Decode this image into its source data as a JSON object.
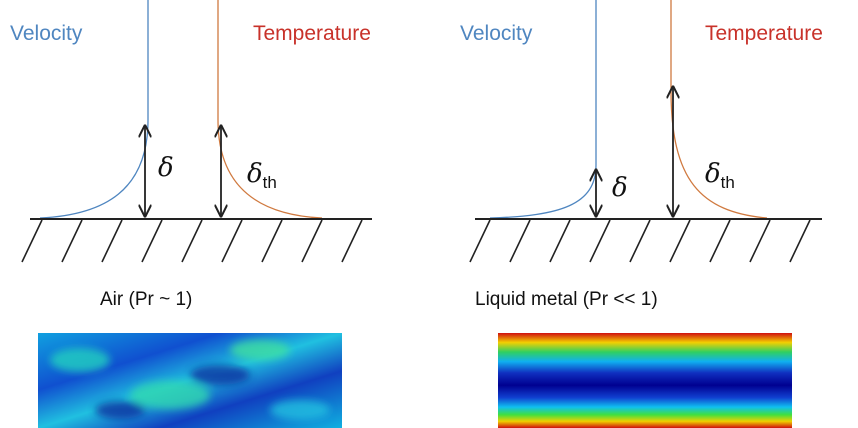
{
  "panels": [
    {
      "velocity_label": "Velocity",
      "temperature_label": "Temperature",
      "delta": "δ",
      "delta_th": {
        "symbol": "δ",
        "subscript": "th"
      },
      "caption": "Air (Pr ~ 1)"
    },
    {
      "velocity_label": "Velocity",
      "temperature_label": "Temperature",
      "delta": "δ",
      "delta_th": {
        "symbol": "δ",
        "subscript": "th"
      },
      "caption": "Liquid metal (Pr << 1)"
    }
  ]
}
